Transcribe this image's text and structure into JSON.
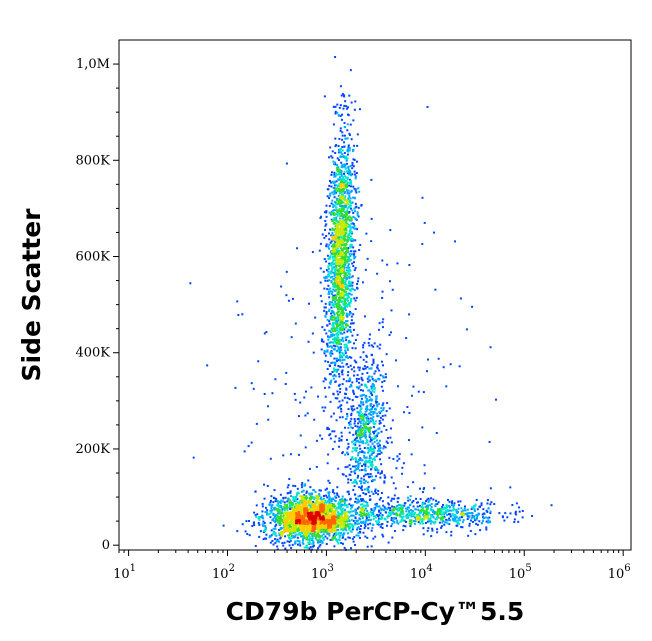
{
  "chart_data": {
    "type": "scatter",
    "subtype": "flow-cytometry density dot plot (pseudocolor)",
    "xlabel": "CD79b PerCP-Cy™5.5",
    "ylabel": "Side Scatter",
    "x_scale": "log",
    "y_scale": "linear",
    "xlim": [
      8,
      1200000
    ],
    "ylim": [
      -10000,
      1050000
    ],
    "x_ticks": [
      {
        "base": "10",
        "exp": "1",
        "value": 10
      },
      {
        "base": "10",
        "exp": "2",
        "value": 100
      },
      {
        "base": "10",
        "exp": "3",
        "value": 1000
      },
      {
        "base": "10",
        "exp": "4",
        "value": 10000
      },
      {
        "base": "10",
        "exp": "5",
        "value": 100000
      },
      {
        "base": "10",
        "exp": "6",
        "value": 1000000
      }
    ],
    "y_ticks": [
      {
        "label": "0",
        "value": 0
      },
      {
        "label": "200K",
        "value": 200000
      },
      {
        "label": "400K",
        "value": 400000
      },
      {
        "label": "600K",
        "value": 600000
      },
      {
        "label": "800K",
        "value": 800000
      },
      {
        "label": "1,0M",
        "value": 1000000
      }
    ],
    "density_colors": [
      "#0000cc",
      "#0044ff",
      "#00aaff",
      "#00e5d0",
      "#33dd33",
      "#c8e800",
      "#ffcc00",
      "#ff6600",
      "#dd0000"
    ],
    "populations": [
      {
        "x_center": 700,
        "x_log_sd": 0.22,
        "y_center": 55000,
        "y_sd": 25000,
        "count": 2200
      },
      {
        "x_center": 1400,
        "x_log_sd": 0.07,
        "y_center": 600000,
        "y_sd": 130000,
        "count": 1800,
        "slope_x_per_y": 1.5e-07
      },
      {
        "x_center": 2500,
        "x_log_sd": 0.1,
        "y_center": 230000,
        "y_sd": 90000,
        "count": 700
      },
      {
        "x_center": 9000,
        "x_log_sd": 0.4,
        "y_center": 65000,
        "y_sd": 15000,
        "count": 700
      },
      {
        "x_center": 2000,
        "x_log_sd": 0.6,
        "y_center": 250000,
        "y_sd": 200000,
        "count": 300
      }
    ]
  }
}
